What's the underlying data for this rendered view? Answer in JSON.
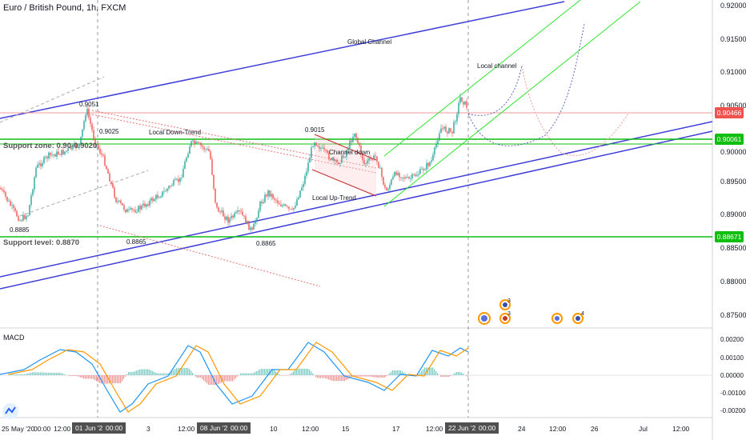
{
  "header": {
    "title": "Euro / British Pound, 1h, FXCM"
  },
  "price_axis": {
    "ticks": [
      "0.92000",
      "0.91500",
      "0.91000",
      "0.90500",
      "0.90000",
      "0.89500",
      "0.89000",
      "0.88500",
      "0.88000",
      "0.87500"
    ],
    "current_price": "0.90466",
    "support_zone_tag": "0.90061",
    "support_level_tag": "0.88671",
    "colors": {
      "current": "#ef5350",
      "zone": "#0fbf0f",
      "level": "#0fbf0f"
    }
  },
  "annotations": {
    "global_channel": "Global Channel",
    "local_channel": "Local channel",
    "local_down_trend": "Local Down-Trend",
    "channel_down": "Channel down",
    "local_up_trend": "Local Up-Trend",
    "p_9051": "0.9051",
    "p_9025": "0.9025",
    "p_9015": "0.9015",
    "p_8885": "0.8885",
    "p_8865a": "0.8865",
    "p_8865b": "0.8865",
    "support_zone": "Support zone: 0.90-0.9020",
    "support_level": "Support level: 0.8870"
  },
  "events": {
    "count_a": "3",
    "count_b": "3",
    "count_c": "4"
  },
  "macd": {
    "label": "MACD",
    "ticks": [
      "0.00200",
      "0.00100",
      "0.00000",
      "-0.00100",
      "-0.00200"
    ]
  },
  "time_axis": {
    "labels": [
      "25 May '20",
      "00:00",
      "12:00",
      "01 Jun '20",
      "00:00",
      "3",
      "12:00",
      "08 Jun '20",
      "00:00",
      "10",
      "12:00",
      "15",
      "17",
      "12:00",
      "22 Jun '20",
      "00:00",
      "24",
      "12:00",
      "26",
      "29",
      "Jul",
      "12:00"
    ]
  },
  "colors": {
    "up": "#26a69a",
    "down": "#ef5350",
    "channel": "#3f3fd9",
    "local": "#2ee52e",
    "macd": "#2196f3",
    "signal": "#ff9800"
  }
}
